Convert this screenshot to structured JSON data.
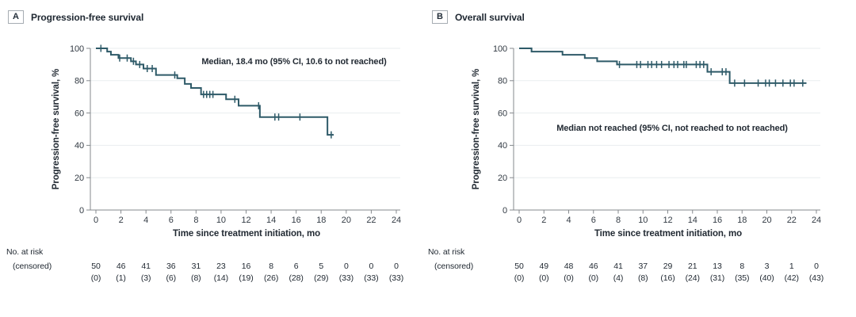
{
  "colors": {
    "curve": "#2e5a68",
    "grid": "#e9edef",
    "axis": "#85898d",
    "text": "#222a33",
    "tick_text": "#333b44"
  },
  "chart_data": [
    {
      "type": "line",
      "subtype": "kaplan-meier-step",
      "panel_label": "A",
      "title": "Progression-free survival",
      "annotation": "Median, 18.4 mo (95% CI, 10.6 to not reached)",
      "xlabel": "Time since treatment initiation, mo",
      "ylabel": "Progression-free survival, %",
      "xlim": [
        0,
        24
      ],
      "ylim": [
        0,
        100
      ],
      "grid": true,
      "xticks": [
        0,
        2,
        4,
        6,
        8,
        10,
        12,
        14,
        16,
        18,
        20,
        22,
        24
      ],
      "yticks": [
        0,
        20,
        40,
        60,
        80,
        100
      ],
      "series": [
        {
          "name": "Progression-free survival",
          "steps": [
            [
              0,
              100
            ],
            [
              0.9,
              98
            ],
            [
              1.2,
              96
            ],
            [
              1.8,
              94
            ],
            [
              2.8,
              92
            ],
            [
              3.2,
              90
            ],
            [
              3.8,
              87.5
            ],
            [
              4.8,
              83.5
            ],
            [
              6.5,
              81.5
            ],
            [
              7.1,
              78
            ],
            [
              7.6,
              75.5
            ],
            [
              8.4,
              71.5
            ],
            [
              10.4,
              68.5
            ],
            [
              11.4,
              64.5
            ],
            [
              13.1,
              57.5
            ],
            [
              18.5,
              46.5
            ]
          ],
          "end_time": 19.0,
          "censor_marks": [
            [
              0.4,
              100
            ],
            [
              1.9,
              94
            ],
            [
              2.5,
              94
            ],
            [
              3.0,
              92
            ],
            [
              3.5,
              90
            ],
            [
              4.1,
              87.5
            ],
            [
              4.5,
              87.5
            ],
            [
              6.3,
              83.5
            ],
            [
              8.6,
              71.5
            ],
            [
              8.85,
              71.5
            ],
            [
              9.1,
              71.5
            ],
            [
              9.35,
              71.5
            ],
            [
              11.1,
              68.5
            ],
            [
              13.0,
              64.5
            ],
            [
              14.3,
              57.5
            ],
            [
              14.6,
              57.5
            ],
            [
              16.3,
              57.5
            ],
            [
              18.8,
              46.5
            ]
          ]
        }
      ],
      "risk_table": {
        "label_line1": "No. at risk",
        "label_line2": "(censored)",
        "times": [
          0,
          2,
          4,
          6,
          8,
          10,
          12,
          14,
          16,
          18,
          20,
          22,
          24
        ],
        "at_risk": [
          50,
          46,
          41,
          36,
          31,
          23,
          16,
          8,
          6,
          5,
          0,
          0,
          0
        ],
        "censored": [
          "(0)",
          "(1)",
          "(3)",
          "(6)",
          "(8)",
          "(14)",
          "(19)",
          "(26)",
          "(28)",
          "(29)",
          "(33)",
          "(33)",
          "(33)"
        ]
      }
    },
    {
      "type": "line",
      "subtype": "kaplan-meier-step",
      "panel_label": "B",
      "title": "Overall survival",
      "annotation": "Median not reached (95% CI, not reached to not reached)",
      "xlabel": "Time since treatment initiation, mo",
      "ylabel": "Progression-free survival, %",
      "xlim": [
        0,
        24
      ],
      "ylim": [
        0,
        100
      ],
      "grid": true,
      "xticks": [
        0,
        2,
        4,
        6,
        8,
        10,
        12,
        14,
        16,
        18,
        20,
        22,
        24
      ],
      "yticks": [
        0,
        20,
        40,
        60,
        80,
        100
      ],
      "series": [
        {
          "name": "Overall survival",
          "steps": [
            [
              0,
              100
            ],
            [
              1.0,
              98
            ],
            [
              3.5,
              96
            ],
            [
              5.3,
              94
            ],
            [
              6.3,
              92
            ],
            [
              7.9,
              90
            ],
            [
              15.2,
              85.5
            ],
            [
              17.0,
              78.5
            ]
          ],
          "end_time": 23.2,
          "censor_marks": [
            [
              8.1,
              90
            ],
            [
              9.5,
              90
            ],
            [
              9.8,
              90
            ],
            [
              10.4,
              90
            ],
            [
              10.7,
              90
            ],
            [
              11.1,
              90
            ],
            [
              11.5,
              90
            ],
            [
              12.1,
              90
            ],
            [
              12.5,
              90
            ],
            [
              12.8,
              90
            ],
            [
              13.3,
              90
            ],
            [
              13.5,
              90
            ],
            [
              14.3,
              90
            ],
            [
              14.6,
              90
            ],
            [
              14.9,
              90
            ],
            [
              15.5,
              85.5
            ],
            [
              16.4,
              85.5
            ],
            [
              16.7,
              85.5
            ],
            [
              17.4,
              78.5
            ],
            [
              18.2,
              78.5
            ],
            [
              19.3,
              78.5
            ],
            [
              19.9,
              78.5
            ],
            [
              20.2,
              78.5
            ],
            [
              20.7,
              78.5
            ],
            [
              21.3,
              78.5
            ],
            [
              21.9,
              78.5
            ],
            [
              22.2,
              78.5
            ],
            [
              22.9,
              78.5
            ]
          ]
        }
      ],
      "risk_table": {
        "label_line1": "No. at risk",
        "label_line2": "(censored)",
        "times": [
          0,
          2,
          4,
          6,
          8,
          10,
          12,
          14,
          16,
          18,
          20,
          22,
          24
        ],
        "at_risk": [
          50,
          49,
          48,
          46,
          41,
          37,
          29,
          21,
          13,
          8,
          3,
          1,
          0
        ],
        "censored": [
          "(0)",
          "(0)",
          "(0)",
          "(0)",
          "(4)",
          "(8)",
          "(16)",
          "(24)",
          "(31)",
          "(35)",
          "(40)",
          "(42)",
          "(43)"
        ]
      }
    }
  ]
}
